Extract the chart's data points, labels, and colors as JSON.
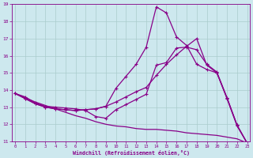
{
  "xlabel": "Windchill (Refroidissement éolien,°C)",
  "bg_color": "#cde8ee",
  "line_color": "#880088",
  "grid_color": "#aacccc",
  "xmin": 0,
  "xmax": 23,
  "ymin": 11,
  "ymax": 19,
  "yticks": [
    11,
    12,
    13,
    14,
    15,
    16,
    17,
    18,
    19
  ],
  "xticks": [
    0,
    1,
    2,
    3,
    4,
    5,
    6,
    7,
    8,
    9,
    10,
    11,
    12,
    13,
    14,
    15,
    16,
    17,
    18,
    19,
    20,
    21,
    22,
    23
  ],
  "lines": [
    {
      "y": [
        13.8,
        13.5,
        13.2,
        13.0,
        12.9,
        12.85,
        12.8,
        12.85,
        12.9,
        13.05,
        14.1,
        14.8,
        15.5,
        16.5,
        18.85,
        18.5,
        17.1,
        16.6,
        15.5,
        15.2,
        15.0,
        13.5,
        11.9,
        10.9
      ],
      "ls": "-"
    },
    {
      "y": [
        13.8,
        13.5,
        13.2,
        13.0,
        12.9,
        12.85,
        12.8,
        12.85,
        12.9,
        13.05,
        13.3,
        13.6,
        13.9,
        14.15,
        14.85,
        15.5,
        16.05,
        16.55,
        17.0,
        15.45,
        15.0,
        13.55,
        11.95,
        10.9
      ],
      "ls": "-"
    },
    {
      "y": [
        13.8,
        13.6,
        13.25,
        13.05,
        13.0,
        12.95,
        12.9,
        12.8,
        12.45,
        12.35,
        12.85,
        13.15,
        13.45,
        13.75,
        15.45,
        15.6,
        16.45,
        16.5,
        16.35,
        15.5,
        15.05,
        13.55,
        11.95,
        10.9
      ],
      "ls": "-"
    },
    {
      "y": [
        13.8,
        13.55,
        13.3,
        13.1,
        12.9,
        12.7,
        12.5,
        12.35,
        12.15,
        12.0,
        11.9,
        11.85,
        11.75,
        11.7,
        11.7,
        11.65,
        11.6,
        11.5,
        11.45,
        11.4,
        11.35,
        11.25,
        11.15,
        10.9
      ],
      "ls": "-"
    }
  ]
}
